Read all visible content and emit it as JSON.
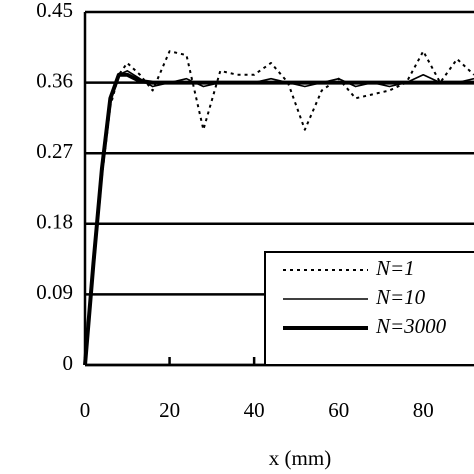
{
  "chart_data": {
    "type": "line",
    "x_label": "x (mm)",
    "x": [
      0,
      2,
      4,
      6,
      8,
      10,
      13,
      16,
      20,
      24,
      28,
      32,
      36,
      40,
      44,
      48,
      52,
      56,
      60,
      64,
      68,
      72,
      76,
      80,
      84,
      88,
      92
    ],
    "series": [
      {
        "name": "N=1",
        "color": "#000000",
        "line_style": "dotted",
        "values": [
          0,
          0.12,
          0.24,
          0.33,
          0.37,
          0.385,
          0.37,
          0.35,
          0.4,
          0.395,
          0.3,
          0.375,
          0.37,
          0.37,
          0.385,
          0.36,
          0.3,
          0.35,
          0.365,
          0.34,
          0.345,
          0.35,
          0.36,
          0.4,
          0.36,
          0.39,
          0.37
        ]
      },
      {
        "name": "N=10",
        "color": "#000000",
        "line_style": "thin",
        "values": [
          0,
          0.13,
          0.25,
          0.34,
          0.37,
          0.375,
          0.365,
          0.355,
          0.36,
          0.365,
          0.355,
          0.36,
          0.36,
          0.36,
          0.365,
          0.36,
          0.355,
          0.36,
          0.365,
          0.355,
          0.36,
          0.355,
          0.36,
          0.37,
          0.36,
          0.36,
          0.365
        ]
      },
      {
        "name": "N=3000",
        "color": "#000000",
        "line_style": "thick",
        "values": [
          0,
          0.13,
          0.25,
          0.34,
          0.37,
          0.37,
          0.362,
          0.36,
          0.36,
          0.36,
          0.36,
          0.36,
          0.36,
          0.36,
          0.36,
          0.36,
          0.36,
          0.36,
          0.36,
          0.36,
          0.36,
          0.36,
          0.36,
          0.36,
          0.36,
          0.36,
          0.36
        ]
      }
    ],
    "xlim": [
      0,
      92
    ],
    "xticks": [
      0,
      20,
      40,
      60,
      80
    ],
    "ylim": [
      0,
      0.45
    ],
    "yticks": [
      0,
      0.09,
      0.18,
      0.27,
      0.36,
      0.45
    ],
    "grid": true,
    "legend": "lower right"
  }
}
